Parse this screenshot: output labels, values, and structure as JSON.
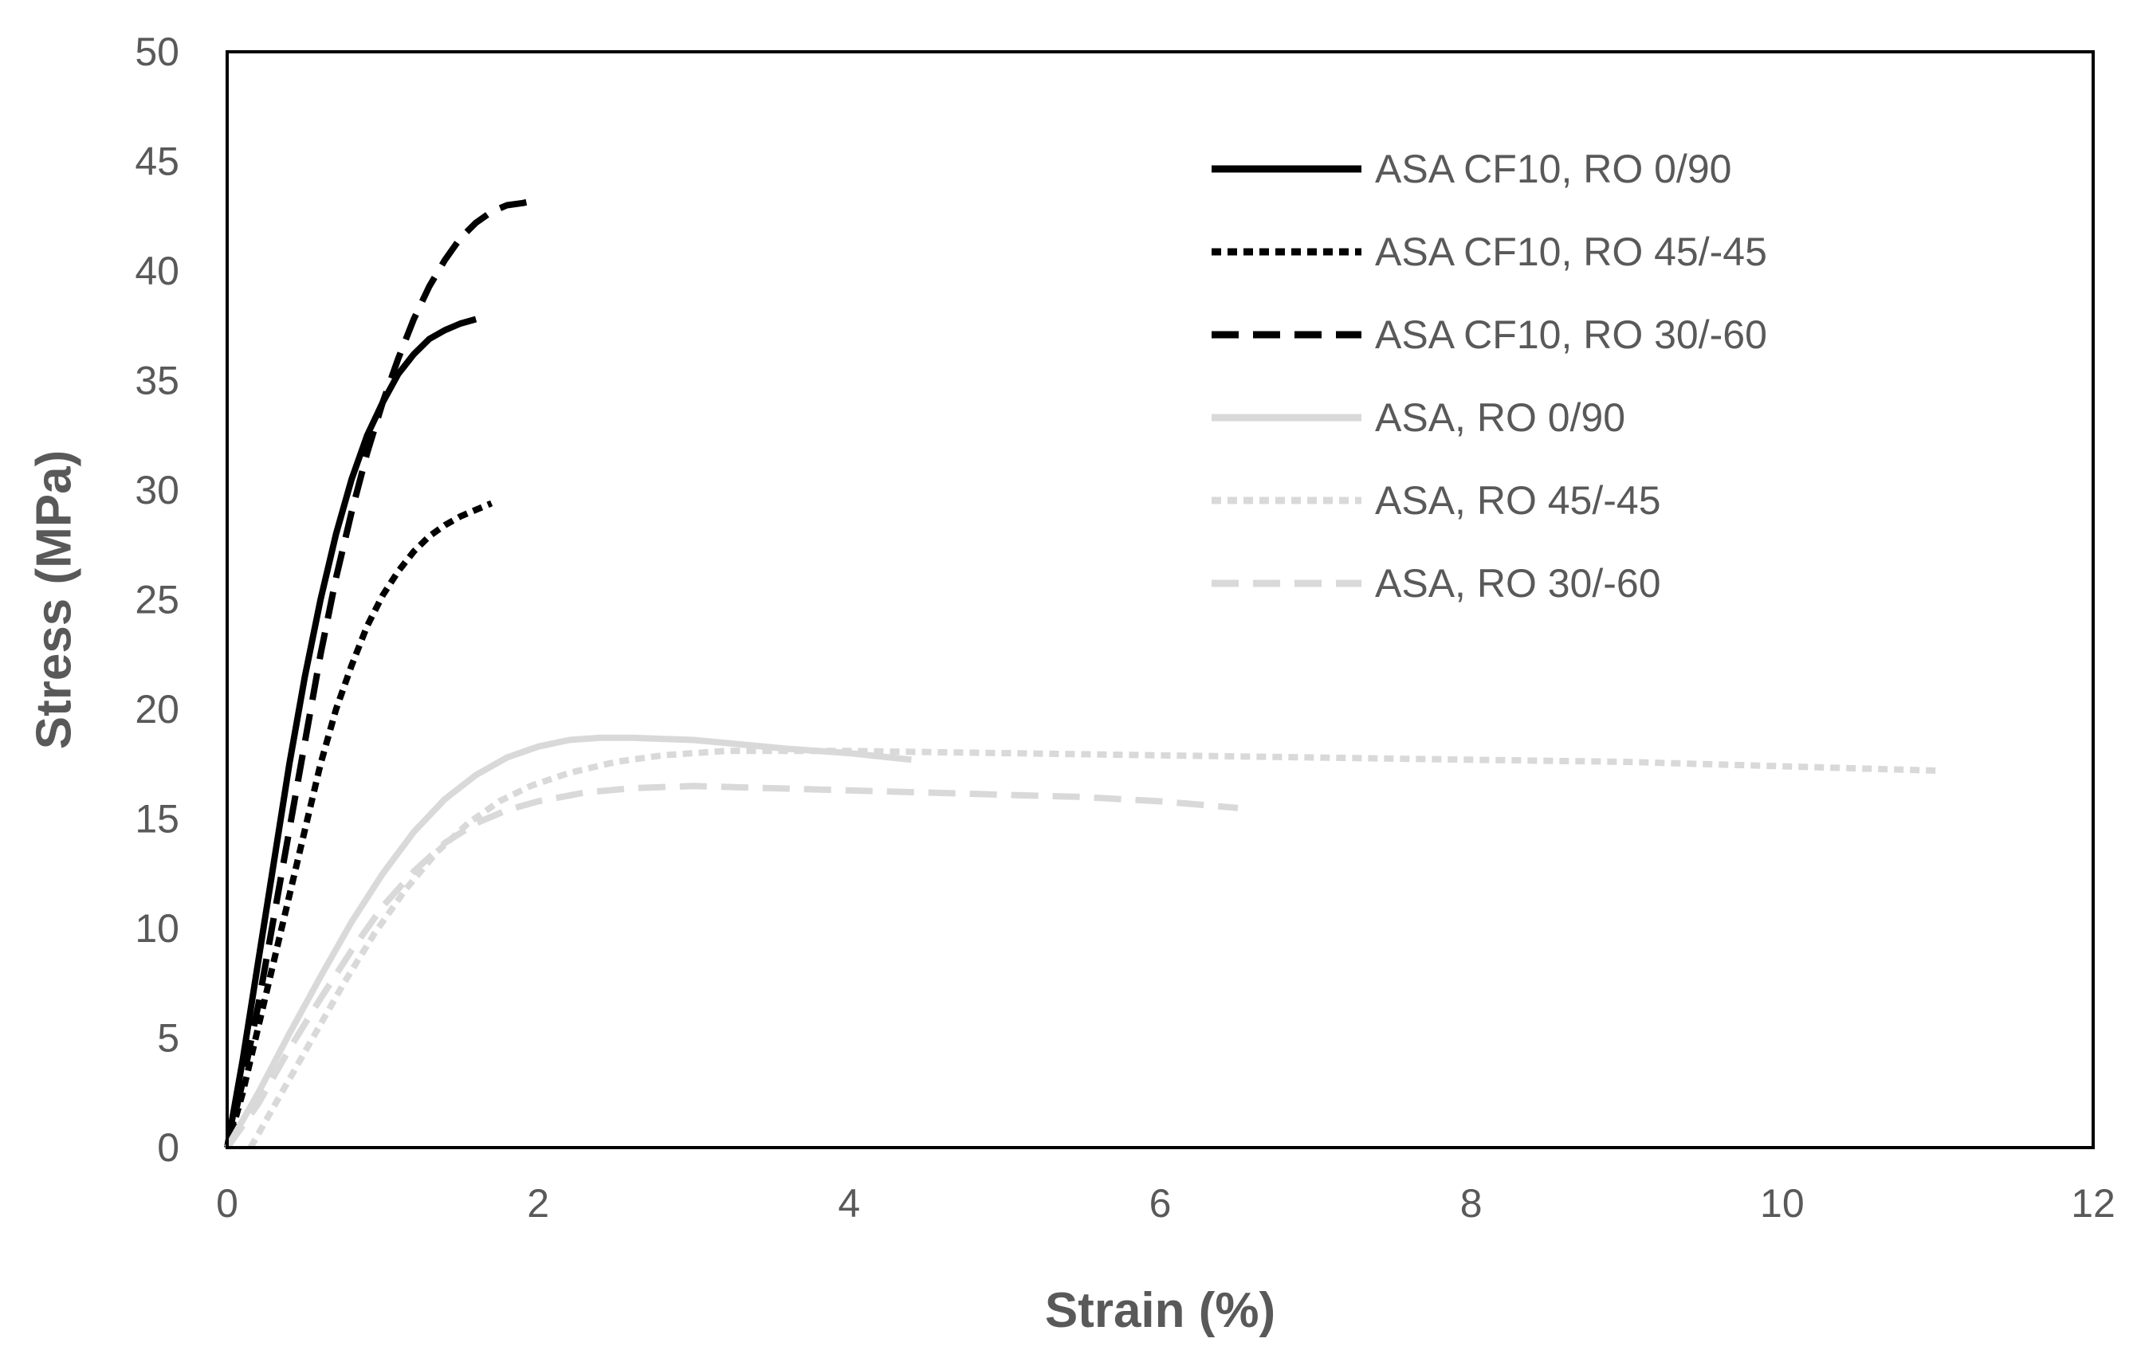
{
  "chart_data": {
    "type": "line",
    "title": "",
    "xlabel": "Strain (%)",
    "ylabel": "Stress (MPa)",
    "xlim": [
      0,
      12
    ],
    "ylim": [
      0,
      50
    ],
    "xticks": [
      0,
      2,
      4,
      6,
      8,
      10,
      12
    ],
    "yticks": [
      0,
      5,
      10,
      15,
      20,
      25,
      30,
      35,
      40,
      45,
      50
    ],
    "grid": false,
    "legend_position": "top-right",
    "series": [
      {
        "name": "ASA CF10, RO 0/90",
        "color": "#000000",
        "dash": "solid",
        "x": [
          0,
          0.1,
          0.2,
          0.3,
          0.4,
          0.5,
          0.6,
          0.7,
          0.8,
          0.9,
          1.0,
          1.1,
          1.2,
          1.3,
          1.4,
          1.5,
          1.6
        ],
        "y": [
          0,
          4,
          8.5,
          13,
          17.5,
          21.5,
          25,
          28,
          30.5,
          32.5,
          34,
          35.3,
          36.2,
          36.9,
          37.3,
          37.6,
          37.8
        ]
      },
      {
        "name": "ASA CF10, RO 45/-45",
        "color": "#000000",
        "dash": "dotted",
        "x": [
          0,
          0.1,
          0.2,
          0.3,
          0.4,
          0.5,
          0.6,
          0.7,
          0.8,
          0.9,
          1.0,
          1.1,
          1.2,
          1.3,
          1.4,
          1.5,
          1.6,
          1.7
        ],
        "y": [
          0,
          2.5,
          5.5,
          8.5,
          11.5,
          14.5,
          17.5,
          20,
          22,
          23.8,
          25.2,
          26.3,
          27.2,
          27.9,
          28.4,
          28.8,
          29.1,
          29.4
        ]
      },
      {
        "name": "ASA CF10, RO 30/-60",
        "color": "#000000",
        "dash": "dashed",
        "x": [
          0,
          0.1,
          0.2,
          0.3,
          0.4,
          0.5,
          0.6,
          0.7,
          0.8,
          0.9,
          1.0,
          1.1,
          1.2,
          1.3,
          1.4,
          1.5,
          1.6,
          1.7,
          1.8,
          1.9,
          1.97
        ],
        "y": [
          0,
          3,
          6.5,
          10.5,
          14.5,
          18.5,
          22.5,
          26,
          29,
          31.7,
          34,
          36,
          37.8,
          39.3,
          40.5,
          41.5,
          42.2,
          42.7,
          43,
          43.1,
          43.2
        ]
      },
      {
        "name": "ASA, RO 0/90",
        "color": "#d9d9d9",
        "dash": "solid",
        "x": [
          0,
          0.2,
          0.4,
          0.6,
          0.8,
          1.0,
          1.2,
          1.4,
          1.6,
          1.8,
          2.0,
          2.2,
          2.4,
          2.6,
          2.8,
          3.0,
          3.3,
          3.6,
          4.0,
          4.4
        ],
        "y": [
          0,
          2.5,
          5.2,
          7.8,
          10.3,
          12.5,
          14.4,
          15.9,
          17.0,
          17.8,
          18.3,
          18.6,
          18.7,
          18.7,
          18.65,
          18.6,
          18.4,
          18.2,
          18.0,
          17.7
        ]
      },
      {
        "name": "ASA, RO 45/-45",
        "color": "#d9d9d9",
        "dash": "dotted",
        "x": [
          0.15,
          0.35,
          0.55,
          0.75,
          0.95,
          1.15,
          1.35,
          1.55,
          1.75,
          1.95,
          2.2,
          2.5,
          2.8,
          3.2,
          4.0,
          5.0,
          6.0,
          7.0,
          8.0,
          9.0,
          10.0,
          11.0
        ],
        "y": [
          0,
          2.5,
          5.0,
          7.5,
          9.8,
          11.8,
          13.5,
          14.8,
          15.8,
          16.5,
          17.1,
          17.6,
          17.9,
          18.1,
          18.1,
          18.0,
          17.9,
          17.8,
          17.7,
          17.6,
          17.4,
          17.2
        ]
      },
      {
        "name": "ASA, RO 30/-60",
        "color": "#d9d9d9",
        "dash": "dashed",
        "x": [
          0,
          0.2,
          0.4,
          0.6,
          0.8,
          1.0,
          1.2,
          1.4,
          1.6,
          1.8,
          2.0,
          2.3,
          2.6,
          3.0,
          3.5,
          4.0,
          4.5,
          5.0,
          5.5,
          6.0,
          6.5
        ],
        "y": [
          0,
          2.0,
          4.5,
          6.8,
          9.0,
          11.0,
          12.6,
          13.9,
          14.8,
          15.4,
          15.8,
          16.2,
          16.4,
          16.5,
          16.4,
          16.3,
          16.2,
          16.1,
          16.0,
          15.8,
          15.5
        ]
      }
    ]
  }
}
